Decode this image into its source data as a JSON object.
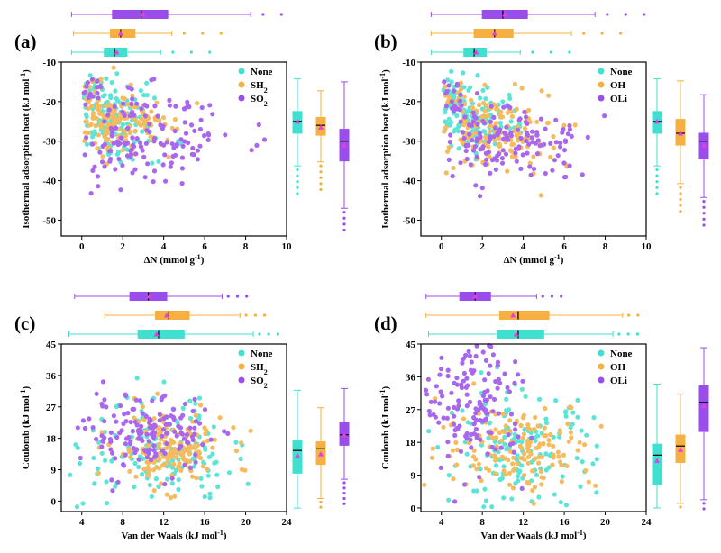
{
  "colors": {
    "none": "#40E0D0",
    "mid": "#F5B041",
    "last": "#9B4DEB",
    "mean": "#E040E0",
    "median": "#000000"
  },
  "chart_data": [
    {
      "panel": "(a)",
      "type": "scatter",
      "xlabel": "ΔN (mmol g",
      "xlabel_sup": "-1",
      "xlabel_end": ")",
      "ylabel": "Isothermal adsorption heat (kJ mol",
      "ylabel_sup": "-1",
      "ylabel_end": ")",
      "xlim": [
        -1,
        10
      ],
      "ylim": [
        -54,
        -10
      ],
      "xticks": [
        "0",
        "2",
        "4",
        "6",
        "8",
        "10"
      ],
      "yticks": [
        "-50",
        "-40",
        "-30",
        "-20",
        "-10"
      ],
      "legend": [
        "None",
        "SH",
        "SO"
      ],
      "legend_sub": [
        "",
        "2",
        "2"
      ],
      "series_summary": [
        {
          "name": "None",
          "q1": -28,
          "median": -25,
          "q3": -22.5,
          "mean": -25,
          "xmedian": 1.6,
          "xmean": 1.7,
          "xq1": 1.1,
          "xq3": 2.2
        },
        {
          "name": "SH2",
          "q1": -28.5,
          "median": -26,
          "q3": -24,
          "mean": -26.5,
          "xmedian": 1.9,
          "xmean": 1.9,
          "xq1": 1.4,
          "xq3": 2.6
        },
        {
          "name": "SO2",
          "q1": -35,
          "median": -30,
          "q3": -27,
          "mean": -31,
          "xmedian": 2.9,
          "xmean": 3.0,
          "xq1": 1.5,
          "xq3": 4.2
        }
      ]
    },
    {
      "panel": "(b)",
      "type": "scatter",
      "xlabel": "ΔN (mmol g",
      "xlabel_sup": "-1",
      "xlabel_end": ")",
      "ylabel": "Isothermal adsorption heat (kJ mol",
      "ylabel_sup": "-1",
      "ylabel_end": ")",
      "xlim": [
        -1,
        10
      ],
      "ylim": [
        -54,
        -10
      ],
      "xticks": [
        "0",
        "2",
        "4",
        "6",
        "8",
        "10"
      ],
      "yticks": [
        "-50",
        "-40",
        "-30",
        "-20",
        "-10"
      ],
      "legend": [
        "None",
        "OH",
        "OLi"
      ],
      "legend_sub": [
        "",
        "",
        ""
      ],
      "series_summary": [
        {
          "name": "None",
          "q1": -28,
          "median": -25,
          "q3": -22.5,
          "mean": -25,
          "xmedian": 1.6,
          "xmean": 1.7,
          "xq1": 1.1,
          "xq3": 2.2
        },
        {
          "name": "OH",
          "q1": -31,
          "median": -28,
          "q3": -24.5,
          "mean": -28,
          "xmedian": 2.6,
          "xmean": 2.6,
          "xq1": 1.6,
          "xq3": 3.5
        },
        {
          "name": "OLi",
          "q1": -34.5,
          "median": -30,
          "q3": -28,
          "mean": -31,
          "xmedian": 3.0,
          "xmean": 3.1,
          "xq1": 2.0,
          "xq3": 4.2
        }
      ]
    },
    {
      "panel": "(c)",
      "type": "scatter",
      "xlabel": "Van der Waals (kJ mol",
      "xlabel_sup": "-1",
      "xlabel_end": ")",
      "ylabel": "Coulomb (kJ mol",
      "ylabel_sup": "-1",
      "ylabel_end": ")",
      "xlim": [
        2,
        24
      ],
      "ylim": [
        -3,
        45
      ],
      "xticks": [
        "4",
        "8",
        "12",
        "16",
        "20",
        "24"
      ],
      "yticks": [
        "0",
        "9",
        "18",
        "27",
        "36",
        "45"
      ],
      "legend": [
        "None",
        "SH",
        "SO"
      ],
      "legend_sub": [
        "",
        "2",
        "2"
      ],
      "series_summary": [
        {
          "name": "None",
          "q1": 8,
          "median": 14.5,
          "q3": 17.5,
          "mean": 13,
          "xmedian": 11.5,
          "xmean": 11.3,
          "xq1": 9.5,
          "xq3": 14.0
        },
        {
          "name": "SH2",
          "q1": 10.5,
          "median": 15,
          "q3": 17,
          "mean": 13.5,
          "xmedian": 12.5,
          "xmean": 12.3,
          "xq1": 11.2,
          "xq3": 14.5
        },
        {
          "name": "SO2",
          "q1": 16,
          "median": 19,
          "q3": 22.5,
          "mean": 19,
          "xmedian": 10.5,
          "xmean": 10.6,
          "xq1": 8.7,
          "xq3": 12.3
        }
      ]
    },
    {
      "panel": "(d)",
      "type": "scatter",
      "xlabel": "Van der Waals (kJ mol",
      "xlabel_sup": "-1",
      "xlabel_end": ")",
      "ylabel": "Coulomb (kJ mol",
      "ylabel_sup": "-1",
      "ylabel_end": ")",
      "xlim": [
        2,
        24
      ],
      "ylim": [
        -1,
        45
      ],
      "xticks": [
        "4",
        "8",
        "12",
        "16",
        "20",
        "24"
      ],
      "yticks": [
        "0",
        "9",
        "18",
        "27",
        "36",
        "45"
      ],
      "legend": [
        "None",
        "OH",
        "OLi"
      ],
      "legend_sub": [
        "",
        "",
        ""
      ],
      "series_summary": [
        {
          "name": "None",
          "q1": 6.5,
          "median": 14.5,
          "q3": 17.5,
          "mean": 13,
          "xmedian": 11.5,
          "xmean": 11.3,
          "xq1": 9.5,
          "xq3": 14.0
        },
        {
          "name": "OH",
          "q1": 12.5,
          "median": 17,
          "q3": 20,
          "mean": 16,
          "xmedian": 11.5,
          "xmean": 11.0,
          "xq1": 9.7,
          "xq3": 14.5
        },
        {
          "name": "OLi",
          "q1": 21,
          "median": 29,
          "q3": 33.5,
          "mean": 28,
          "xmedian": 7.3,
          "xmean": 7.3,
          "xq1": 5.8,
          "xq3": 8.8
        }
      ]
    }
  ]
}
